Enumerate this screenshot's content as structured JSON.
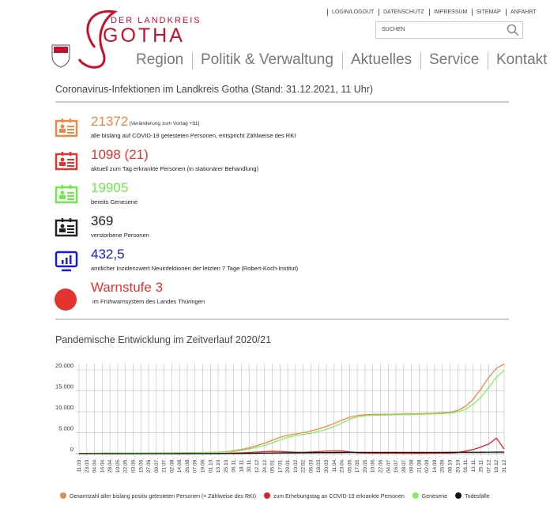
{
  "header": {
    "logo_small": "DER LANDKREIS",
    "logo_big": "GOTHA",
    "top_links": [
      "LOGIN/LOGOUT",
      "DATENSCHUTZ",
      "IMPRESSUM",
      "SITEMAP",
      "ANFAHRT"
    ],
    "search": "SUCHEN",
    "nav": [
      "Region",
      "Politik & Verwaltung",
      "Aktuelles",
      "Service",
      "Kontakt"
    ]
  },
  "section_title": "Coronavirus-Infektionen im Landkreis Gotha (Stand: 31.12.2021, 11 Uhr)",
  "stats": [
    {
      "value": "21372",
      "note": "[Veränderung zum Vortag +91]",
      "desc": "alle bislang auf COVID-19 getesteten Personen, entspricht Zählweise des RKI",
      "color": "#e8894a"
    },
    {
      "value": "1098 (21)",
      "desc": "aktuell zum Tag erkrankte Personen (in stationärer Behandlung)",
      "color": "#e3342f"
    },
    {
      "value": "19905",
      "desc": "bereits Genesene",
      "color": "#6ee84d"
    },
    {
      "value": "369",
      "desc": "verstorbene Personen",
      "color": "#222222"
    },
    {
      "value": "432,5",
      "desc": "amtlicher Inzidenzwert Neuinfektionen der letzten 7 Tage (Robert-Koch-Institut)",
      "color": "#1a1adb"
    },
    {
      "value": "Warnstufe 3",
      "desc": "im Frühwarnsystem des Landes Thüringen",
      "color": "#e3342f"
    }
  ],
  "chart_data": {
    "type": "line",
    "title": "Pandemische Entwicklung im Zeitverlauf 2020/21",
    "categories": [
      "11.03.",
      "23.03.",
      "04.04.",
      "16.04.",
      "28.04.",
      "10.05.",
      "22.05.",
      "03.06.",
      "15.06.",
      "27.06.",
      "09.07.",
      "21.07.",
      "02.08.",
      "14.08.",
      "26.08.",
      "07.09.",
      "19.09.",
      "01.10.",
      "13.10.",
      "25.10.",
      "06.11.",
      "18.11.",
      "30.11.",
      "12.12.",
      "24.12.",
      "05.01.",
      "17.01.",
      "29.01.",
      "10.02.",
      "22.02.",
      "06.03.",
      "18.03.",
      "30.03.",
      "11.04.",
      "23.04.",
      "05.05.",
      "17.05.",
      "29.05.",
      "10.06.",
      "22.06.",
      "04.07.",
      "16.07.",
      "28.07.",
      "09.08.",
      "21.08.",
      "02.09.",
      "14.09.",
      "26.09.",
      "08.10.",
      "20.10.",
      "01.11.",
      "13.11.",
      "25.11.",
      "07.12.",
      "19.12.",
      "31.12."
    ],
    "series": [
      {
        "name": "Gesamtzahl aller bislang positiv getesteten Personen (= Zählweise des RKI)",
        "color": "#e8894a",
        "values": [
          20,
          80,
          120,
          140,
          150,
          155,
          160,
          165,
          170,
          175,
          180,
          190,
          200,
          215,
          230,
          250,
          270,
          300,
          350,
          450,
          700,
          1000,
          1400,
          1900,
          2500,
          3200,
          3900,
          4400,
          4700,
          5000,
          5400,
          5900,
          6500,
          7200,
          8000,
          8700,
          9100,
          9300,
          9350,
          9380,
          9400,
          9420,
          9450,
          9500,
          9550,
          9600,
          9650,
          9750,
          9900,
          10300,
          11300,
          13000,
          15500,
          18200,
          20400,
          21372
        ]
      },
      {
        "name": "zum Erhebungstag an COVID-19 erkrankte Personen",
        "color": "#e02020",
        "values": [
          20,
          50,
          30,
          15,
          10,
          5,
          5,
          5,
          5,
          5,
          5,
          10,
          10,
          15,
          15,
          20,
          20,
          25,
          40,
          80,
          170,
          200,
          280,
          380,
          470,
          550,
          520,
          430,
          350,
          330,
          400,
          500,
          600,
          650,
          650,
          420,
          250,
          180,
          150,
          100,
          120,
          120,
          100,
          80,
          80,
          90,
          130,
          150,
          150,
          280,
          600,
          1000,
          1600,
          2300,
          3700,
          1098
        ]
      },
      {
        "name": "Genesene",
        "color": "#7ef060",
        "values": [
          0,
          20,
          70,
          110,
          130,
          140,
          150,
          155,
          160,
          165,
          170,
          175,
          185,
          195,
          210,
          225,
          245,
          270,
          300,
          360,
          520,
          780,
          1100,
          1500,
          2000,
          2600,
          3300,
          3900,
          4300,
          4600,
          4900,
          5300,
          5800,
          6500,
          7300,
          8200,
          8800,
          9050,
          9150,
          9200,
          9230,
          9260,
          9300,
          9340,
          9380,
          9430,
          9480,
          9560,
          9700,
          9950,
          10600,
          11800,
          13500,
          15800,
          18200,
          19905
        ]
      },
      {
        "name": "Todesfälle",
        "color": "#111111",
        "values": [
          0,
          2,
          5,
          6,
          7,
          7,
          7,
          7,
          7,
          7,
          7,
          7,
          7,
          8,
          8,
          9,
          9,
          10,
          12,
          18,
          30,
          50,
          80,
          110,
          140,
          170,
          190,
          210,
          225,
          235,
          245,
          255,
          265,
          275,
          290,
          300,
          305,
          307,
          308,
          308,
          308,
          309,
          309,
          309,
          310,
          310,
          311,
          312,
          314,
          318,
          326,
          335,
          345,
          355,
          362,
          369
        ]
      }
    ],
    "ylim": [
      0,
      21500
    ],
    "yticks": [
      0,
      {
        "value": 5000,
        "label": "5.000"
      },
      {
        "value": 10000,
        "label": "10.000"
      },
      {
        "value": 15000,
        "label": "15.000"
      },
      {
        "value": 20000,
        "label": "20.000"
      }
    ],
    "grid": true
  }
}
